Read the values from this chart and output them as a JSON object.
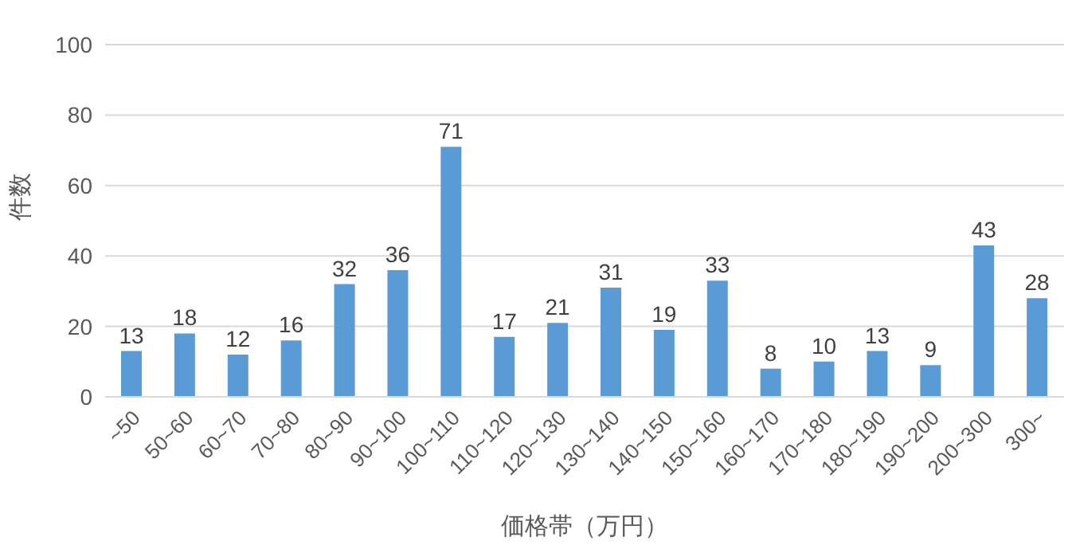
{
  "chart_data": {
    "type": "bar",
    "xlabel": "価格帯（万円）",
    "ylabel": "件数",
    "categories": [
      "~50",
      "50~60",
      "60~70",
      "70~80",
      "80~90",
      "90~100",
      "100~110",
      "110~120",
      "120~130",
      "130~140",
      "140~150",
      "150~160",
      "160~170",
      "170~180",
      "180~190",
      "190~200",
      "200~300",
      "300~"
    ],
    "values": [
      13,
      18,
      12,
      16,
      32,
      36,
      71,
      17,
      21,
      31,
      19,
      33,
      8,
      10,
      13,
      9,
      43,
      28
    ],
    "color": "#5b9bd5",
    "ylim": [
      0,
      100
    ],
    "yticks": [
      0,
      20,
      40,
      60,
      80,
      100
    ],
    "grid": "y",
    "data_labels": true
  }
}
